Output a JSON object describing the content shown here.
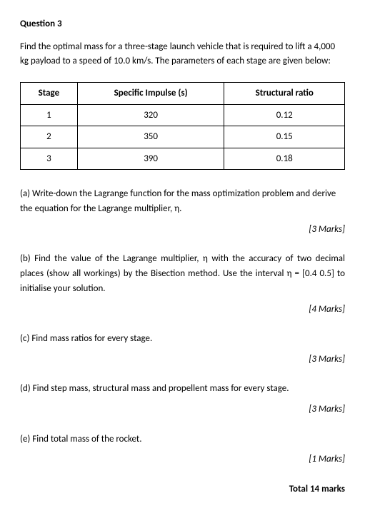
{
  "title": "Question 3",
  "intro": "Find the optimal mass for a three-stage launch vehicle that is required to lift a 4,000 kg payload to a speed of 10.0 km/s. The parameters of each stage are given below:",
  "table": {
    "headers": [
      "Stage",
      "Specific Impulse (s)",
      "Structural ratio"
    ],
    "rows": [
      [
        "1",
        "320",
        "0.12"
      ],
      [
        "2",
        "350",
        "0.15"
      ],
      [
        "3",
        "390",
        "0.18"
      ]
    ]
  },
  "parts": {
    "a": {
      "text": "(a)  Write-down the Lagrange function for the mass optimization problem and derive the equation for the Lagrange multiplier, η.",
      "marks": "[3 Marks]"
    },
    "b": {
      "text": "(b)  Find the value of the Lagrange multiplier, η with the accuracy of two decimal places (show all workings) by the Bisection method. Use the interval η = [0.4 0.5] to initialise your solution.",
      "marks": "[4 Marks]"
    },
    "c": {
      "text": "(c)   Find mass ratios for every stage.",
      "marks": "[3 Marks]"
    },
    "d": {
      "text": "(d)  Find step mass, structural mass and propellent mass for every stage.",
      "marks": "[3 Marks]"
    },
    "e": {
      "text": "(e)  Find total mass of the rocket.",
      "marks": "[1 Marks]"
    }
  },
  "total": "Total 14 marks"
}
